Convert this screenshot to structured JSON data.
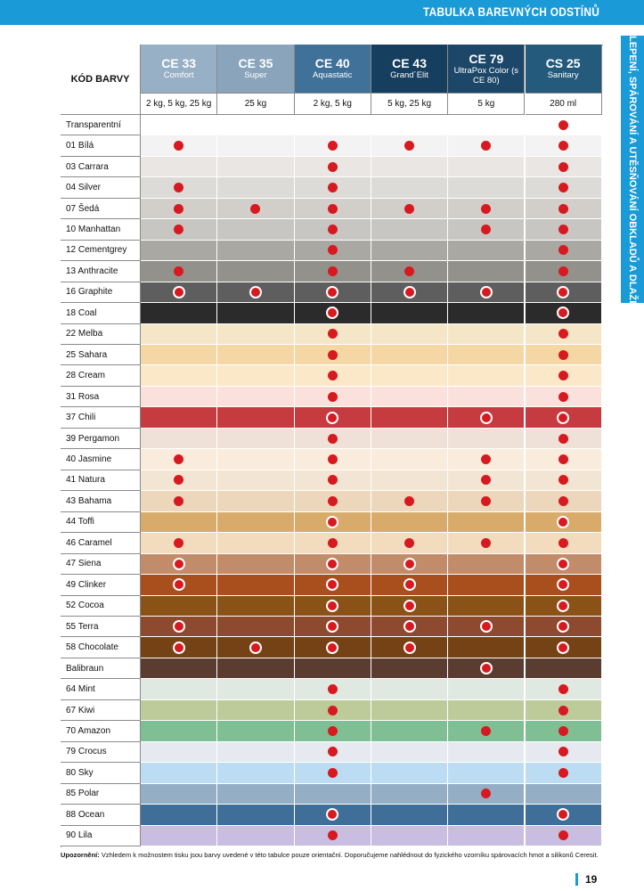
{
  "header": {
    "title": "TABULKA BAREVNÝCH ODSTÍNŮ",
    "side_tab": "LEPENÍ, SPÁROVÁNÍ A UTĚSŇOVÁNÍ OBKLADŮ A DLAŽBY"
  },
  "table": {
    "corner": "KÓD BARVY",
    "columns": [
      {
        "code": "CE 33",
        "name": "Comfort",
        "sizes": "2 kg, 5 kg, 25 kg",
        "color": "#98b0c5"
      },
      {
        "code": "CE 35",
        "name": "Super",
        "sizes": "25 kg",
        "color": "#8aa4bc"
      },
      {
        "code": "CE 40",
        "name": "Aquastatic",
        "sizes": "2 kg, 5 kg",
        "color": "#3f7199"
      },
      {
        "code": "CE 43",
        "name": "Grand´Elit",
        "sizes": "5 kg, 25 kg",
        "color": "#163e5e"
      },
      {
        "code": "CE 79",
        "name": "UltraPox Color (s CE 80)",
        "sizes": "5 kg",
        "color": "#1c4768"
      },
      {
        "code": "CS 25",
        "name": "Sanitary",
        "sizes": "280 ml",
        "color": "#245a7c"
      }
    ],
    "rows": [
      {
        "name": "Transparentní",
        "color": "#ffffff",
        "available": [
          0,
          0,
          0,
          0,
          0,
          1
        ],
        "ring": false
      },
      {
        "name": "01 Bílá",
        "color": "#f3f3f3",
        "available": [
          1,
          0,
          1,
          1,
          1,
          1
        ],
        "ring": false
      },
      {
        "name": "03 Carrara",
        "color": "#e9e6e3",
        "available": [
          0,
          0,
          1,
          0,
          0,
          1
        ],
        "ring": false
      },
      {
        "name": "04 Silver",
        "color": "#dddbd8",
        "available": [
          1,
          0,
          1,
          0,
          0,
          1
        ],
        "ring": false
      },
      {
        "name": "07 Šedá",
        "color": "#d2cfcb",
        "available": [
          1,
          1,
          1,
          1,
          1,
          1
        ],
        "ring": false
      },
      {
        "name": "10 Manhattan",
        "color": "#c8c6c3",
        "available": [
          1,
          0,
          1,
          0,
          1,
          1
        ],
        "ring": false
      },
      {
        "name": "12 Cementgrey",
        "color": "#aaa8a3",
        "available": [
          0,
          0,
          1,
          0,
          0,
          1
        ],
        "ring": false
      },
      {
        "name": "13 Anthracite",
        "color": "#93918b",
        "available": [
          1,
          0,
          1,
          1,
          0,
          1
        ],
        "ring": false
      },
      {
        "name": "16 Graphite",
        "color": "#5e5e5e",
        "available": [
          1,
          1,
          1,
          1,
          1,
          1
        ],
        "ring": true
      },
      {
        "name": "18 Coal",
        "color": "#2b2b2b",
        "available": [
          0,
          0,
          1,
          0,
          0,
          1
        ],
        "ring": true
      },
      {
        "name": "22 Melba",
        "color": "#f6e6c8",
        "available": [
          0,
          0,
          1,
          0,
          0,
          1
        ],
        "ring": false
      },
      {
        "name": "25 Sahara",
        "color": "#f5d7a6",
        "available": [
          0,
          0,
          1,
          0,
          0,
          1
        ],
        "ring": false
      },
      {
        "name": "28 Cream",
        "color": "#fbe8c8",
        "available": [
          0,
          0,
          1,
          0,
          0,
          1
        ],
        "ring": false
      },
      {
        "name": "31 Rosa",
        "color": "#fbe1dc",
        "available": [
          0,
          0,
          1,
          0,
          0,
          1
        ],
        "ring": false
      },
      {
        "name": "37 Chili",
        "color": "#c63b40",
        "available": [
          0,
          0,
          1,
          0,
          1,
          1
        ],
        "ring": true
      },
      {
        "name": "39 Pergamon",
        "color": "#efe1d8",
        "available": [
          0,
          0,
          1,
          0,
          0,
          1
        ],
        "ring": false
      },
      {
        "name": "40 Jasmine",
        "color": "#f9ecdc",
        "available": [
          1,
          0,
          1,
          0,
          1,
          1
        ],
        "ring": false
      },
      {
        "name": "41 Natura",
        "color": "#f3e5d3",
        "available": [
          1,
          0,
          1,
          0,
          1,
          1
        ],
        "ring": false
      },
      {
        "name": "43 Bahama",
        "color": "#ecd7bd",
        "available": [
          1,
          0,
          1,
          1,
          1,
          1
        ],
        "ring": false
      },
      {
        "name": "44 Toffi",
        "color": "#d9ab6b",
        "available": [
          0,
          0,
          1,
          0,
          0,
          1
        ],
        "ring": true
      },
      {
        "name": "46 Caramel",
        "color": "#f2dcbd",
        "available": [
          1,
          0,
          1,
          1,
          1,
          1
        ],
        "ring": false
      },
      {
        "name": "47 Siena",
        "color": "#c28b6a",
        "available": [
          1,
          0,
          1,
          1,
          0,
          1
        ],
        "ring": true
      },
      {
        "name": "49 Clinker",
        "color": "#a84f1d",
        "available": [
          1,
          0,
          1,
          1,
          0,
          1
        ],
        "ring": true
      },
      {
        "name": "52 Cocoa",
        "color": "#8b5218",
        "available": [
          0,
          0,
          1,
          1,
          0,
          1
        ],
        "ring": true
      },
      {
        "name": "55 Terra",
        "color": "#8e4a2f",
        "available": [
          1,
          0,
          1,
          1,
          1,
          1
        ],
        "ring": true
      },
      {
        "name": "58 Chocolate",
        "color": "#744214",
        "available": [
          1,
          1,
          1,
          1,
          0,
          1
        ],
        "ring": true
      },
      {
        "name": "Balibraun",
        "color": "#5a3c30",
        "available": [
          0,
          0,
          0,
          0,
          1,
          0
        ],
        "ring": true
      },
      {
        "name": "64 Mint",
        "color": "#dfe9e1",
        "available": [
          0,
          0,
          1,
          0,
          0,
          1
        ],
        "ring": false
      },
      {
        "name": "67 Kiwi",
        "color": "#bccb99",
        "available": [
          0,
          0,
          1,
          0,
          0,
          1
        ],
        "ring": false
      },
      {
        "name": "70 Amazon",
        "color": "#7fbf93",
        "available": [
          0,
          0,
          1,
          0,
          1,
          1
        ],
        "ring": false
      },
      {
        "name": "79 Crocus",
        "color": "#e6eaf0",
        "available": [
          0,
          0,
          1,
          0,
          0,
          1
        ],
        "ring": false
      },
      {
        "name": "80 Sky",
        "color": "#bcdcf3",
        "available": [
          0,
          0,
          1,
          0,
          0,
          1
        ],
        "ring": false
      },
      {
        "name": "85 Polar",
        "color": "#94aec6",
        "available": [
          0,
          0,
          0,
          0,
          1,
          0
        ],
        "ring": false
      },
      {
        "name": "88 Ocean",
        "color": "#3f6f98",
        "available": [
          0,
          0,
          1,
          0,
          0,
          1
        ],
        "ring": true
      },
      {
        "name": "90 Lila",
        "color": "#c9bde2",
        "available": [
          0,
          0,
          1,
          0,
          0,
          1
        ],
        "ring": false
      }
    ]
  },
  "footer": {
    "note_label": "Upozornění:",
    "note": "Vzhledem k možnostem tisku jsou barvy uvedené v této tabulce pouze orientační. Doporučujeme nahlédnout do fyzického vzorníku spárovacích hmot a silikonů Ceresit.",
    "page": "19"
  }
}
